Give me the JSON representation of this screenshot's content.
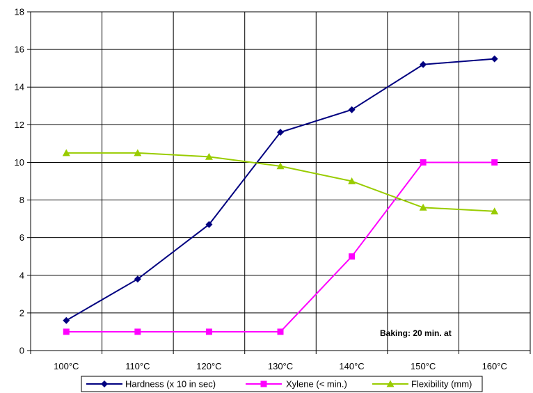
{
  "chart_data": {
    "type": "line",
    "categories": [
      "100°C",
      "110°C",
      "120°C",
      "130°C",
      "140°C",
      "150°C",
      "160°C"
    ],
    "ylim": [
      0,
      18
    ],
    "yticks": [
      0,
      2,
      4,
      6,
      8,
      10,
      12,
      14,
      16,
      18
    ],
    "ytick_labels": [
      "0",
      "2",
      "4",
      "6",
      "8",
      "10",
      "12",
      "14",
      "16",
      "18"
    ],
    "grid": true,
    "legend_position": "bottom",
    "annotation": "Baking: 20 min. at",
    "series": [
      {
        "name": "Hardness (x 10 in sec)",
        "color": "#000080",
        "marker": "diamond",
        "values": [
          1.6,
          3.8,
          6.7,
          11.6,
          12.8,
          15.2,
          15.5
        ]
      },
      {
        "name": "Xylene (< min.)",
        "color": "#FF00FF",
        "marker": "square",
        "values": [
          1,
          1,
          1,
          1,
          5,
          10,
          10
        ]
      },
      {
        "name": "Flexibility  (mm)",
        "color": "#99CC00",
        "marker": "triangle",
        "values": [
          10.5,
          10.5,
          10.3,
          9.8,
          9.0,
          7.6,
          7.4
        ]
      }
    ]
  }
}
